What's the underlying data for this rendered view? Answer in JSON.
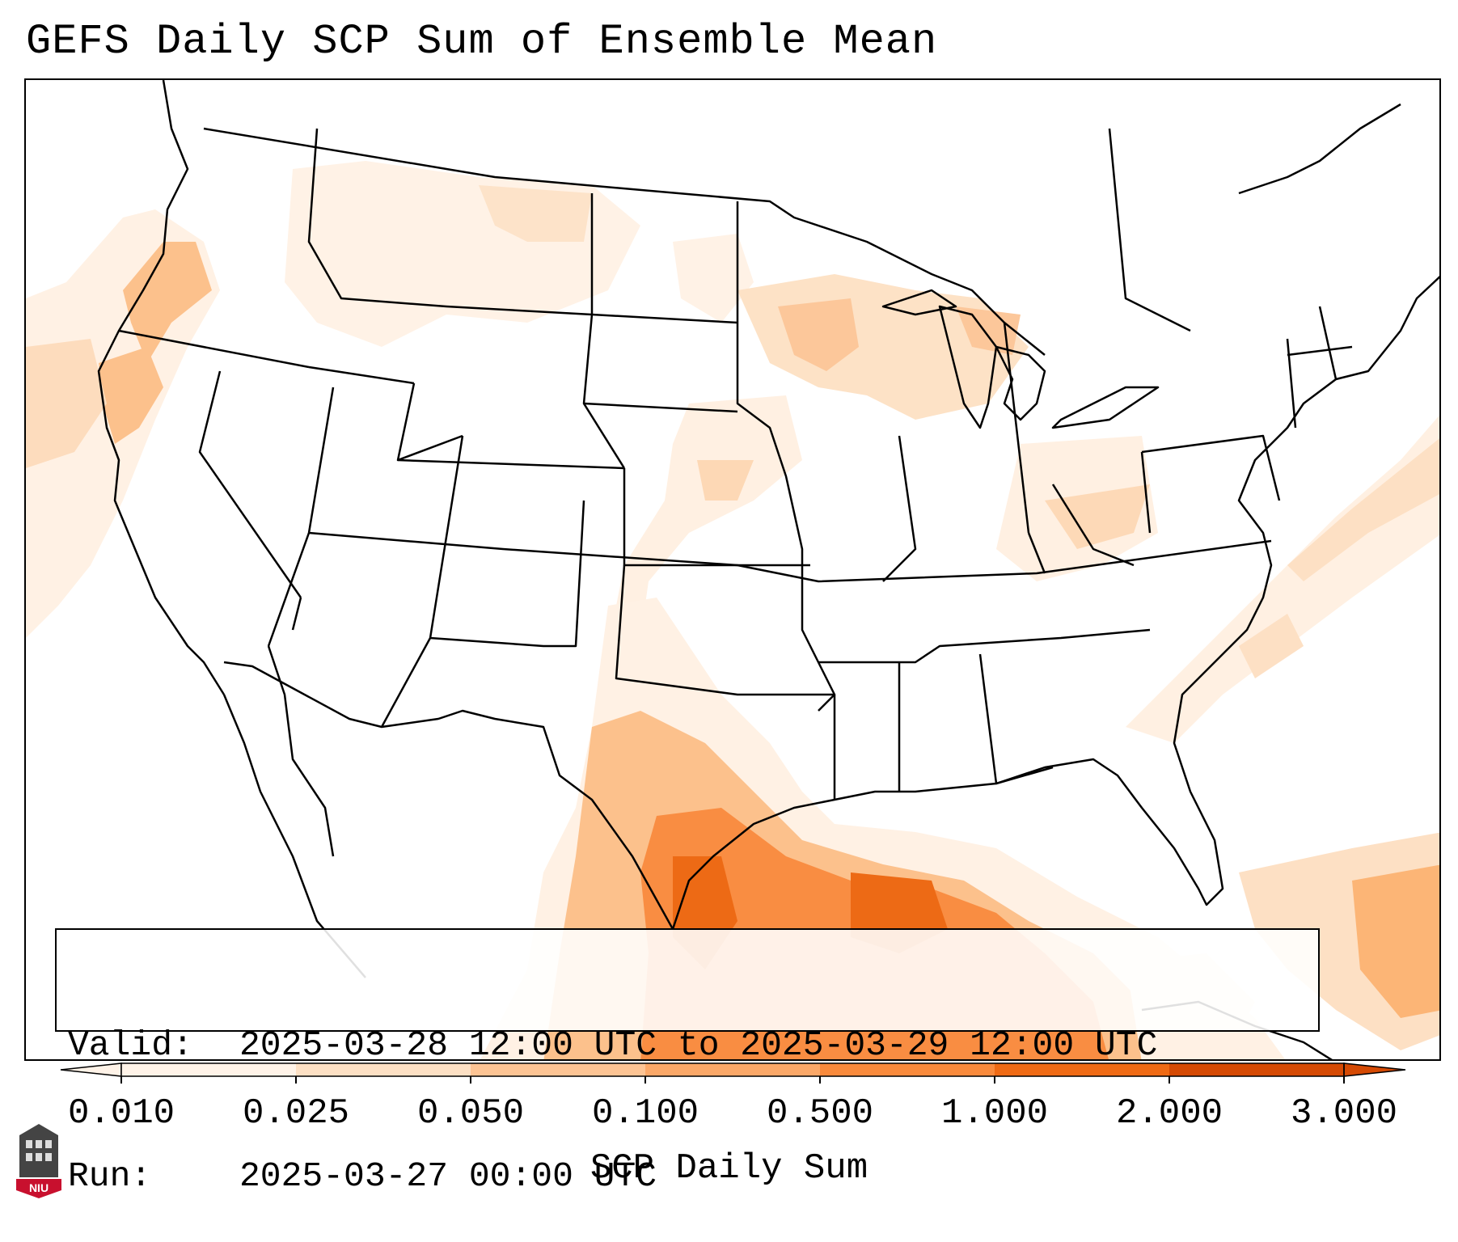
{
  "title": "GEFS Daily SCP Sum of Ensemble Mean",
  "valid_box": {
    "valid_label": "Valid:",
    "valid_value": "2025-03-28 12:00 UTC to 2025-03-29 12:00 UTC",
    "run_label": "Run:",
    "run_value": "2025-03-27 00:00 UTC"
  },
  "colorbar": {
    "label": "SCP Daily Sum",
    "ticks": [
      "0.010",
      "0.025",
      "0.050",
      "0.100",
      "0.500",
      "1.000",
      "2.000",
      "3.000"
    ],
    "colors": [
      "#fff3e8",
      "#fde0c4",
      "#fdc494",
      "#fba868",
      "#f98a3c",
      "#ef6a14",
      "#d54a04"
    ],
    "extend": "both"
  },
  "logo": {
    "text": "NIU",
    "accent": "#c8102e"
  }
}
